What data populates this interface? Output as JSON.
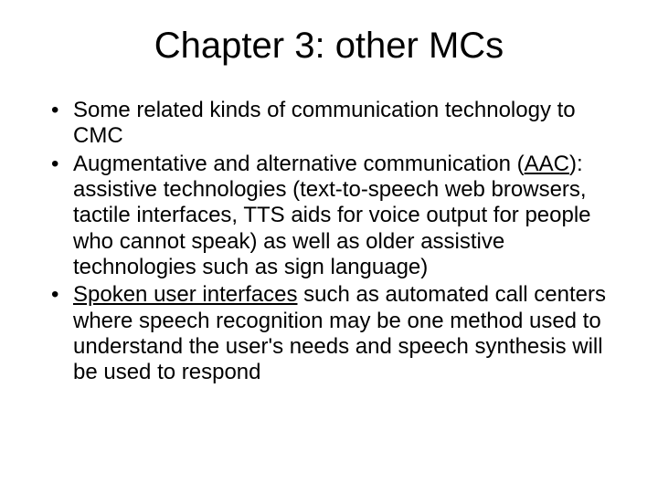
{
  "title": "Chapter 3: other MCs",
  "bullets": [
    {
      "pre": "",
      "u": "",
      "post": "Some related kinds of communication technology to CMC"
    },
    {
      "pre": "Augmentative and alternative communication (",
      "u": "AAC",
      "post": "): assistive technologies (text-to-speech web browsers, tactile interfaces, TTS aids for voice output for people who cannot speak) as well as older assistive technologies such as sign language)"
    },
    {
      "pre": "",
      "u": "Spoken user interfaces",
      "post": " such as automated call centers where speech recognition may be one method used to understand the user's needs and speech synthesis will be used to respond"
    }
  ],
  "style": {
    "background_color": "#ffffff",
    "text_color": "#000000",
    "title_fontsize": 40,
    "body_fontsize": 24,
    "font_family": "Arial"
  }
}
